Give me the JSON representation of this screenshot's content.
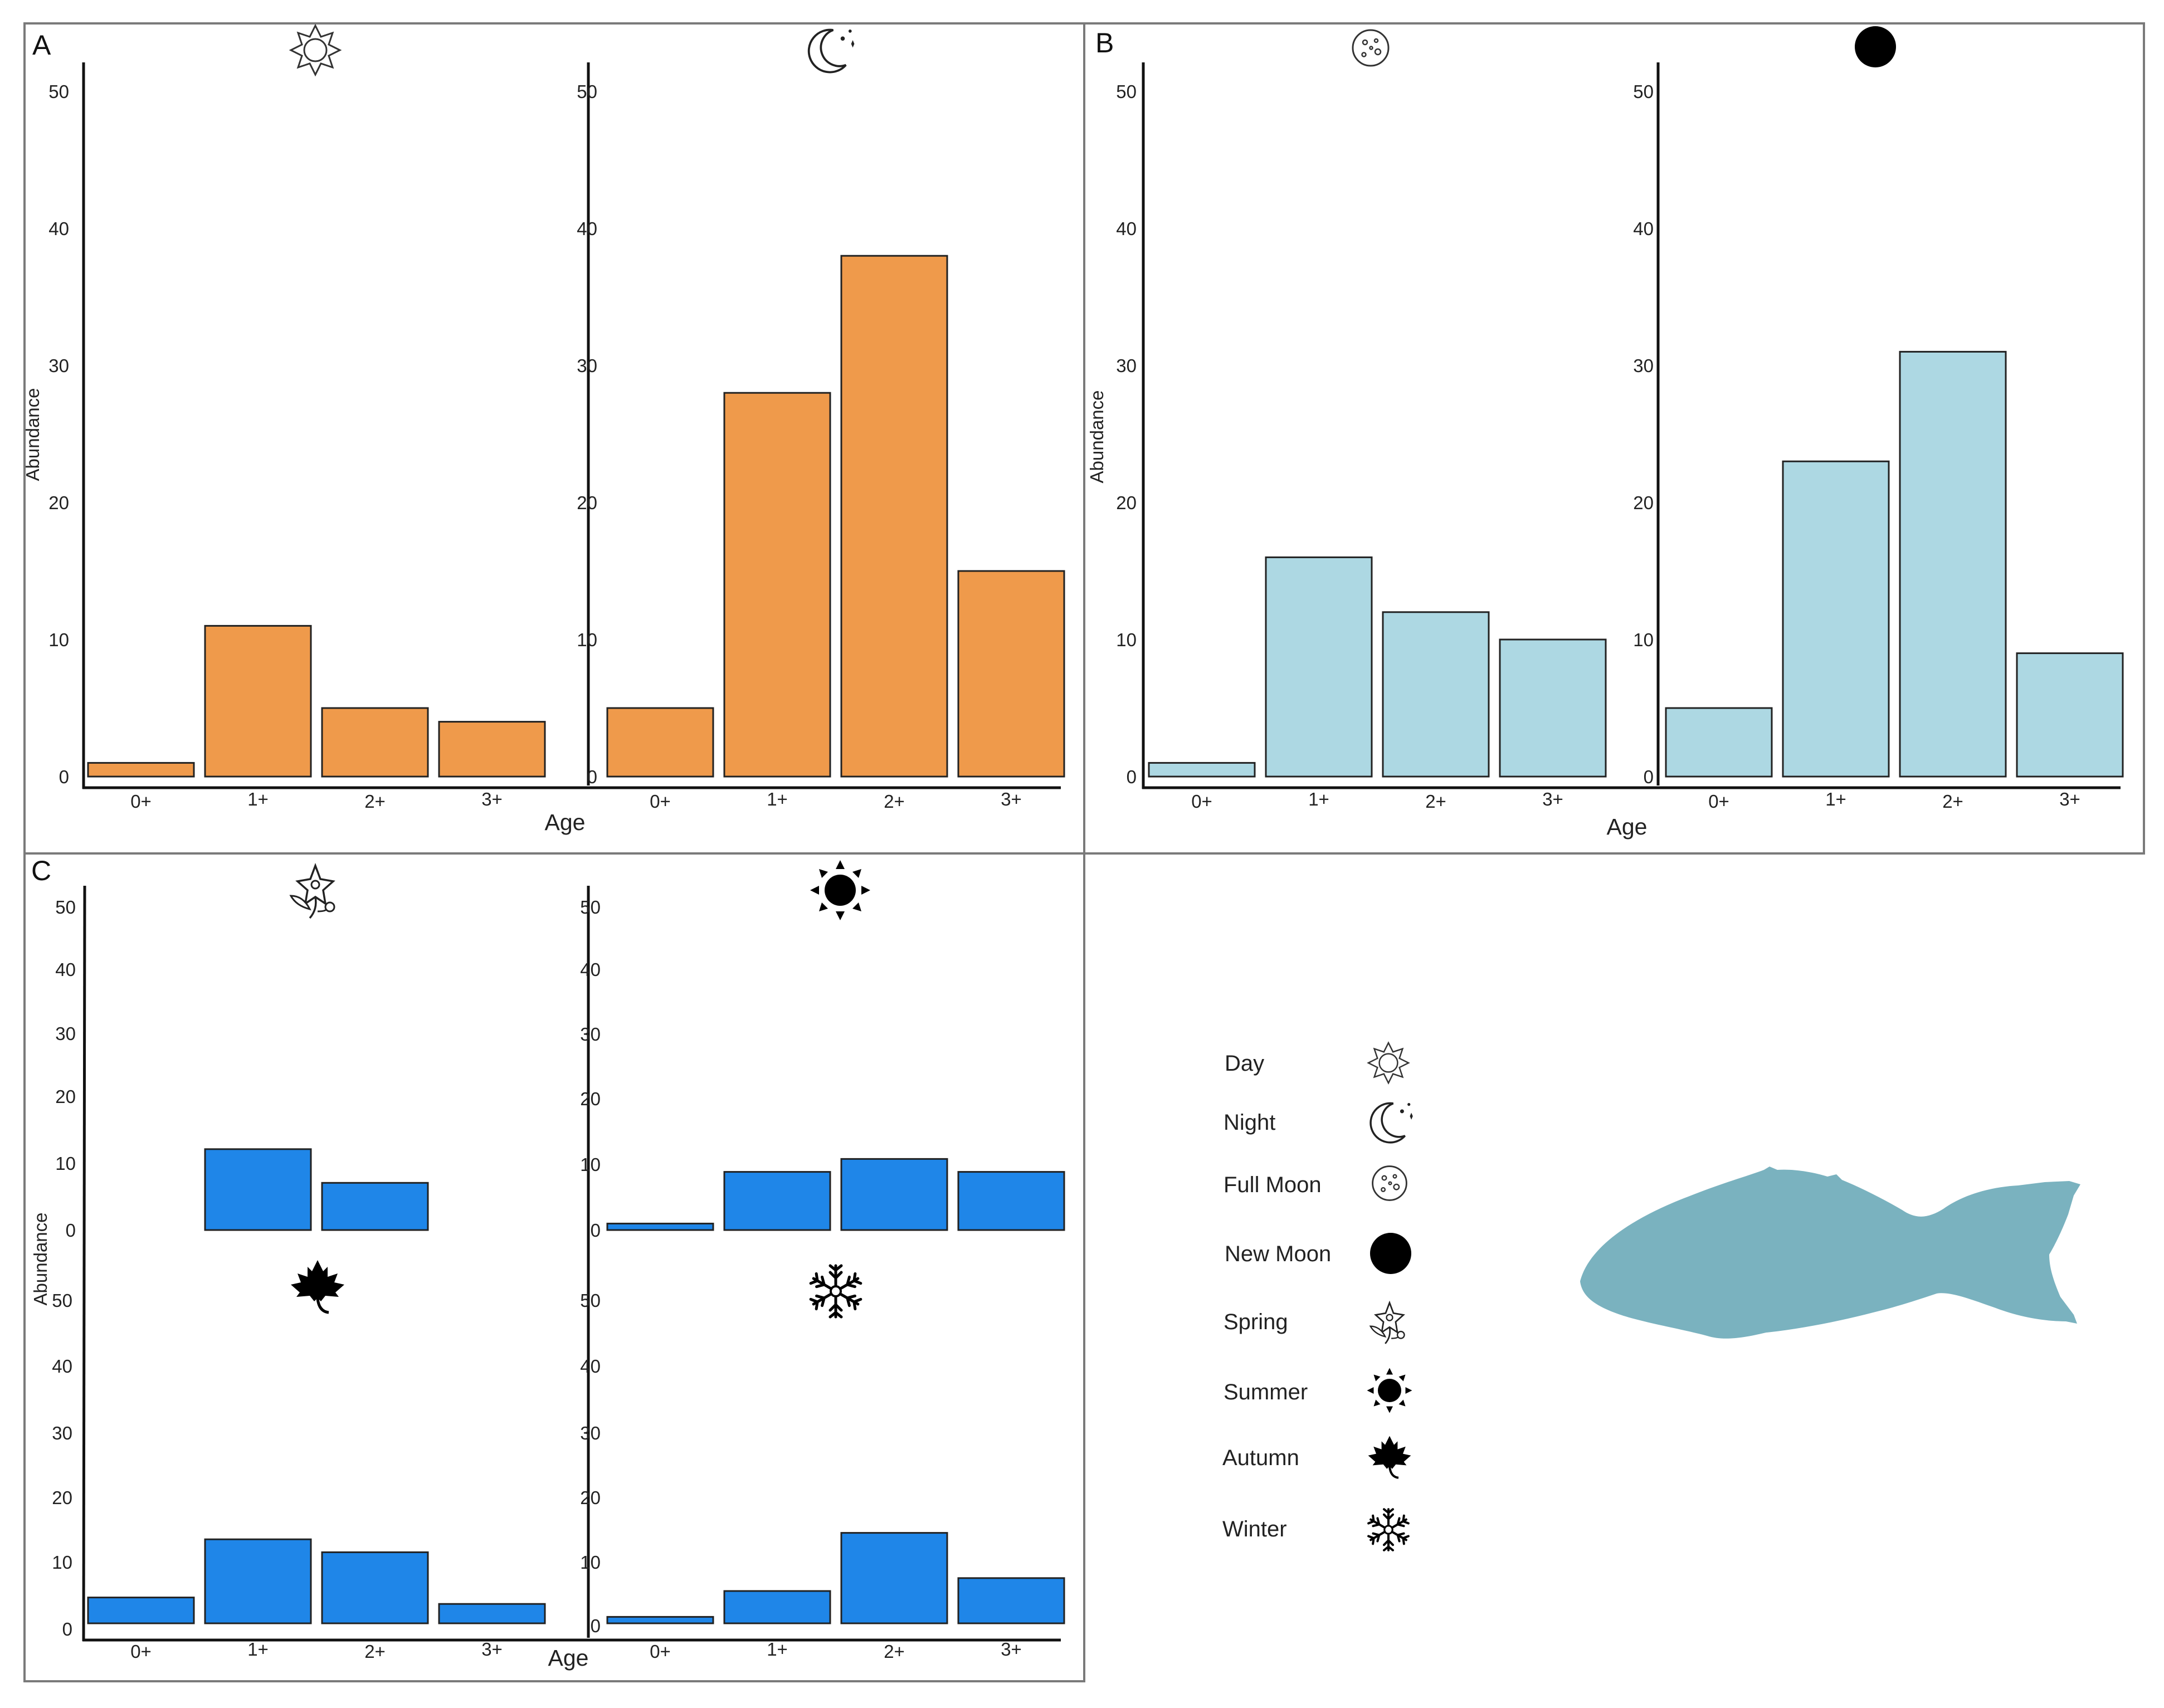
{
  "colors": {
    "panel_a_bar": "#EF9A4B",
    "panel_b_bar": "#ADD8E3",
    "panel_c_bar": "#1F86E8",
    "fish": "#7AB2BF"
  },
  "panel_labels": [
    "A",
    "B",
    "C"
  ],
  "x_axis_label": "Age",
  "y_axis_label": "Abundance",
  "legend": [
    {
      "label": "Day",
      "icon": "day-icon"
    },
    {
      "label": "Night",
      "icon": "night-icon"
    },
    {
      "label": "Full Moon",
      "icon": "full-moon-icon"
    },
    {
      "label": "New Moon",
      "icon": "new-moon-icon"
    },
    {
      "label": "Spring",
      "icon": "spring-icon"
    },
    {
      "label": "Summer",
      "icon": "summer-icon"
    },
    {
      "label": "Autumn",
      "icon": "autumn-icon"
    },
    {
      "label": "Winter",
      "icon": "winter-icon"
    }
  ],
  "chart_data": [
    {
      "id": "A-day",
      "panel": "A",
      "condition": "Day",
      "type": "bar",
      "categories": [
        "0+",
        "1+",
        "2+",
        "3+"
      ],
      "values": [
        1,
        11,
        5,
        4
      ],
      "xlabel": "Age",
      "ylabel": "Abundance",
      "ylim": [
        0,
        50
      ],
      "yticks": [
        0,
        10,
        20,
        30,
        40,
        50
      ]
    },
    {
      "id": "A-night",
      "panel": "A",
      "condition": "Night",
      "type": "bar",
      "categories": [
        "0+",
        "1+",
        "2+",
        "3+"
      ],
      "values": [
        5,
        28,
        38,
        15
      ],
      "xlabel": "Age",
      "ylabel": "",
      "ylim": [
        0,
        50
      ],
      "yticks": [
        0,
        10,
        20,
        30,
        40,
        50
      ]
    },
    {
      "id": "B-fullmoon",
      "panel": "B",
      "condition": "Full Moon",
      "type": "bar",
      "categories": [
        "0+",
        "1+",
        "2+",
        "3+"
      ],
      "values": [
        1,
        16,
        12,
        10
      ],
      "xlabel": "Age",
      "ylabel": "Abundance",
      "ylim": [
        0,
        50
      ],
      "yticks": [
        0,
        10,
        20,
        30,
        40,
        50
      ]
    },
    {
      "id": "B-newmoon",
      "panel": "B",
      "condition": "New Moon",
      "type": "bar",
      "categories": [
        "0+",
        "1+",
        "2+",
        "3+"
      ],
      "values": [
        5,
        23,
        31,
        9
      ],
      "xlabel": "Age",
      "ylabel": "",
      "ylim": [
        0,
        50
      ],
      "yticks": [
        0,
        10,
        20,
        30,
        40,
        50
      ]
    },
    {
      "id": "C-spring",
      "panel": "C",
      "condition": "Spring",
      "type": "bar",
      "categories": [
        "0+",
        "1+",
        "2+",
        "3+"
      ],
      "values": [
        0,
        12,
        7,
        0
      ],
      "xlabel": "",
      "ylabel": "Abundance",
      "ylim": [
        0,
        50
      ],
      "yticks": [
        0,
        10,
        20,
        30,
        40,
        50
      ]
    },
    {
      "id": "C-summer",
      "panel": "C",
      "condition": "Summer",
      "type": "bar",
      "categories": [
        "0+",
        "1+",
        "2+",
        "3+"
      ],
      "values": [
        1,
        9,
        11,
        9
      ],
      "xlabel": "",
      "ylabel": "",
      "ylim": [
        0,
        50
      ],
      "yticks": [
        0,
        10,
        20,
        30,
        40,
        50
      ]
    },
    {
      "id": "C-autumn",
      "panel": "C",
      "condition": "Autumn",
      "type": "bar",
      "categories": [
        "0+",
        "1+",
        "2+",
        "3+"
      ],
      "values": [
        4,
        13,
        11,
        3
      ],
      "xlabel": "Age",
      "ylabel": "",
      "ylim": [
        0,
        50
      ],
      "yticks": [
        0,
        10,
        20,
        30,
        40,
        50
      ]
    },
    {
      "id": "C-winter",
      "panel": "C",
      "condition": "Winter",
      "type": "bar",
      "categories": [
        "0+",
        "1+",
        "2+",
        "3+"
      ],
      "values": [
        1,
        5,
        14,
        7
      ],
      "xlabel": "",
      "ylabel": "",
      "ylim": [
        0,
        50
      ],
      "yticks": [
        0,
        10,
        20,
        30,
        40,
        50
      ]
    }
  ]
}
